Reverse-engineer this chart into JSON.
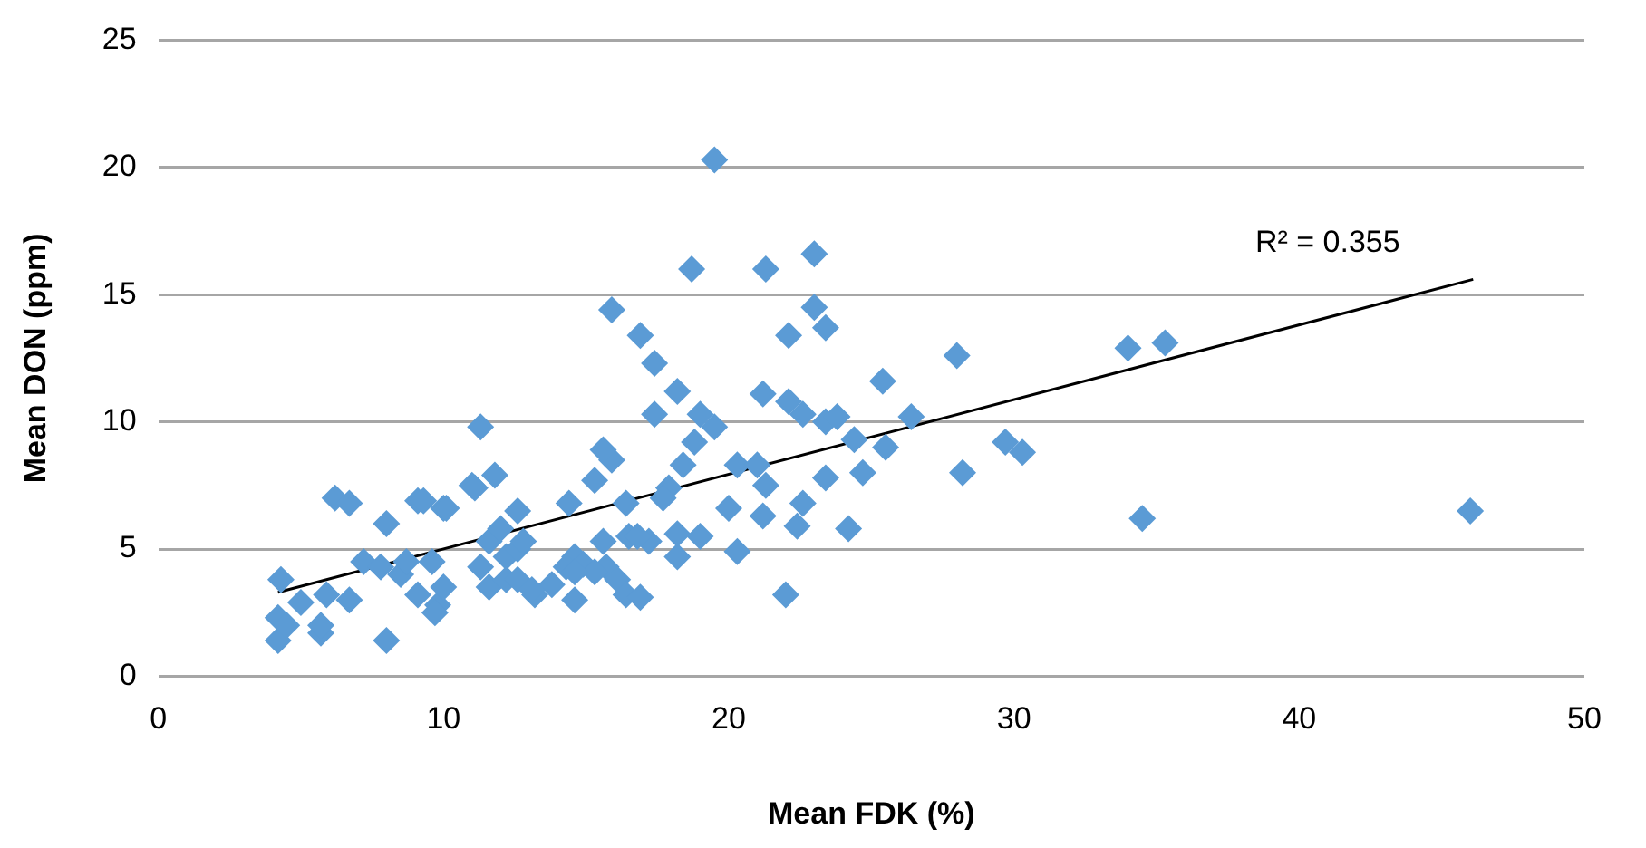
{
  "chart_data": {
    "type": "scatter",
    "xlabel": "Mean FDK (%)",
    "ylabel": "Mean DON (ppm)",
    "xlim": [
      0,
      50
    ],
    "xticks": [
      0,
      10,
      20,
      30,
      40,
      50
    ],
    "ylim": [
      0,
      25
    ],
    "yticks": [
      0,
      5,
      10,
      15,
      20,
      25
    ],
    "grid": "y",
    "legend": false,
    "marker": "diamond",
    "annotations": [
      "R² = 0.355"
    ],
    "series": [
      {
        "color": "#5b9bd5",
        "x": [
          4.2,
          4.2,
          4.3,
          4.5,
          5.0,
          5.7,
          5.7,
          6.2,
          6.7,
          5.9,
          6.7,
          7.2,
          8.0,
          8.0,
          7.8,
          8.5,
          8.7,
          9.1,
          10.0,
          9.1,
          9.8,
          11.0,
          11.3,
          11.8,
          11.6,
          12.2,
          10.1,
          9.3,
          11.1,
          12.6,
          12.0,
          9.6,
          10.0,
          9.7,
          11.3,
          11.6,
          12.2,
          12.6,
          13.2,
          14.6,
          15.7,
          16.5,
          12.8,
          12.6,
          13.8,
          15.9,
          16.9,
          17.4,
          18.7,
          19.5,
          21.3,
          23.0,
          22.1,
          18.2,
          17.4,
          21.2,
          25.4,
          28.0,
          28.2,
          26.4,
          25.5,
          24.7,
          23.4,
          24.2,
          22.4,
          22.6,
          21.2,
          22.0,
          20.0,
          20.3,
          19.0,
          19.5,
          19.0,
          18.8,
          18.4,
          17.9,
          20.3,
          21.0,
          21.3,
          23.4,
          23.8,
          24.4,
          22.1,
          22.6,
          15.9,
          15.6,
          15.3,
          14.4,
          16.4,
          17.7,
          18.2,
          17.2,
          16.8,
          15.6,
          18.2,
          14.6,
          14.9,
          14.3,
          15.3,
          16.1,
          16.4,
          16.9,
          23.0,
          23.4,
          34.0,
          35.3,
          29.7,
          30.3,
          34.5,
          46.0,
          13.1,
          14.6
        ],
        "values": [
          1.4,
          2.3,
          3.8,
          2.0,
          2.9,
          1.7,
          2.0,
          7.0,
          6.8,
          3.2,
          3.0,
          4.5,
          6.0,
          1.4,
          4.3,
          4.0,
          4.5,
          6.9,
          6.6,
          3.2,
          2.8,
          7.5,
          9.8,
          7.9,
          5.3,
          4.7,
          6.6,
          6.9,
          7.4,
          6.5,
          5.8,
          4.5,
          3.5,
          2.5,
          4.3,
          3.5,
          3.8,
          5.0,
          3.2,
          3.0,
          4.3,
          5.5,
          5.3,
          3.8,
          3.6,
          14.4,
          13.4,
          12.3,
          16.0,
          20.3,
          16.0,
          16.6,
          13.4,
          11.2,
          10.3,
          11.1,
          11.6,
          12.6,
          8.0,
          10.2,
          9.0,
          8.0,
          7.8,
          5.8,
          5.9,
          6.8,
          6.3,
          3.2,
          6.6,
          4.9,
          5.5,
          9.8,
          10.3,
          9.2,
          8.3,
          7.4,
          8.3,
          8.3,
          7.5,
          10.0,
          10.2,
          9.3,
          10.8,
          10.3,
          8.5,
          8.9,
          7.7,
          6.8,
          6.8,
          7.0,
          5.6,
          5.3,
          5.5,
          5.3,
          4.7,
          4.7,
          4.4,
          4.3,
          4.1,
          3.8,
          3.2,
          3.1,
          14.5,
          13.7,
          12.9,
          13.1,
          9.2,
          8.8,
          6.2,
          6.5,
          3.4,
          4.1
        ]
      },
      {
        "type": "line",
        "color": "#000000",
        "marker": "none",
        "x": [
          4.2,
          46.1
        ],
        "values": [
          3.3,
          15.6
        ]
      }
    ]
  }
}
